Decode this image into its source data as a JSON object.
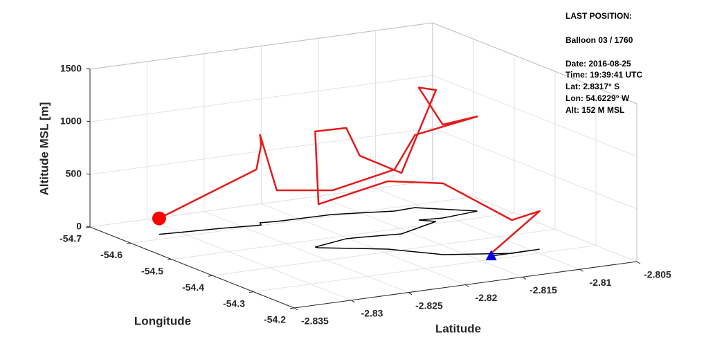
{
  "chart_data": {
    "type": "line3d",
    "xlabel": "Latitude",
    "ylabel": "Longitude",
    "zlabel": "Altitude MSL [m]",
    "xlim": [
      -2.835,
      -2.805
    ],
    "ylim": [
      -54.7,
      -54.2
    ],
    "zlim": [
      0,
      1500
    ],
    "xticks": [
      -2.835,
      -2.83,
      -2.825,
      -2.82,
      -2.815,
      -2.81,
      -2.805
    ],
    "yticks": [
      -54.7,
      -54.6,
      -54.5,
      -54.4,
      -54.3,
      -54.2
    ],
    "zticks": [
      0,
      500,
      1000,
      1500
    ],
    "grid": true,
    "series": [
      {
        "color": "#e31a1c",
        "ground_track_color": "#000000",
        "start_marker_color": "#0000dd",
        "end_marker_color": "#ff0000",
        "x": [
          -2.8136,
          -2.8093,
          -2.8118,
          -2.8165,
          -2.8192,
          -2.8235,
          -2.8236,
          -2.8202,
          -2.8191,
          -2.8158,
          -2.8115,
          -2.8124,
          -2.8105,
          -2.8071,
          -2.8106,
          -2.8125,
          -2.8171,
          -2.8219,
          -2.8232,
          -2.8235,
          -2.8239,
          -2.8266,
          -2.8317
        ],
        "y": [
          -54.316,
          -54.3177,
          -54.3159,
          -54.3526,
          -54.4126,
          -54.4621,
          -54.4674,
          -54.4863,
          -54.484,
          -54.4741,
          -54.5099,
          -54.527,
          -54.5215,
          -54.5318,
          -54.5865,
          -54.5835,
          -54.6064,
          -54.609,
          -54.6135,
          -54.6026,
          -54.6029,
          -54.6117,
          -54.6229
        ],
        "z": [
          26,
          362,
          316,
          678,
          645,
          414,
          1099,
          1053,
          776,
          579,
          1250,
          1260,
          888,
          900,
          691,
          395,
          230,
          296,
          836,
          757,
          533,
          395,
          152
        ]
      }
    ],
    "annotations": [
      "LAST POSITION:",
      "Balloon 03 / 1760",
      "Date: 2016-08-25",
      "Time: 19:39:41 UTC",
      "Lat:  2.8317° S",
      "Lon:  54.6229° W",
      "Alt:  152 M MSL"
    ]
  }
}
